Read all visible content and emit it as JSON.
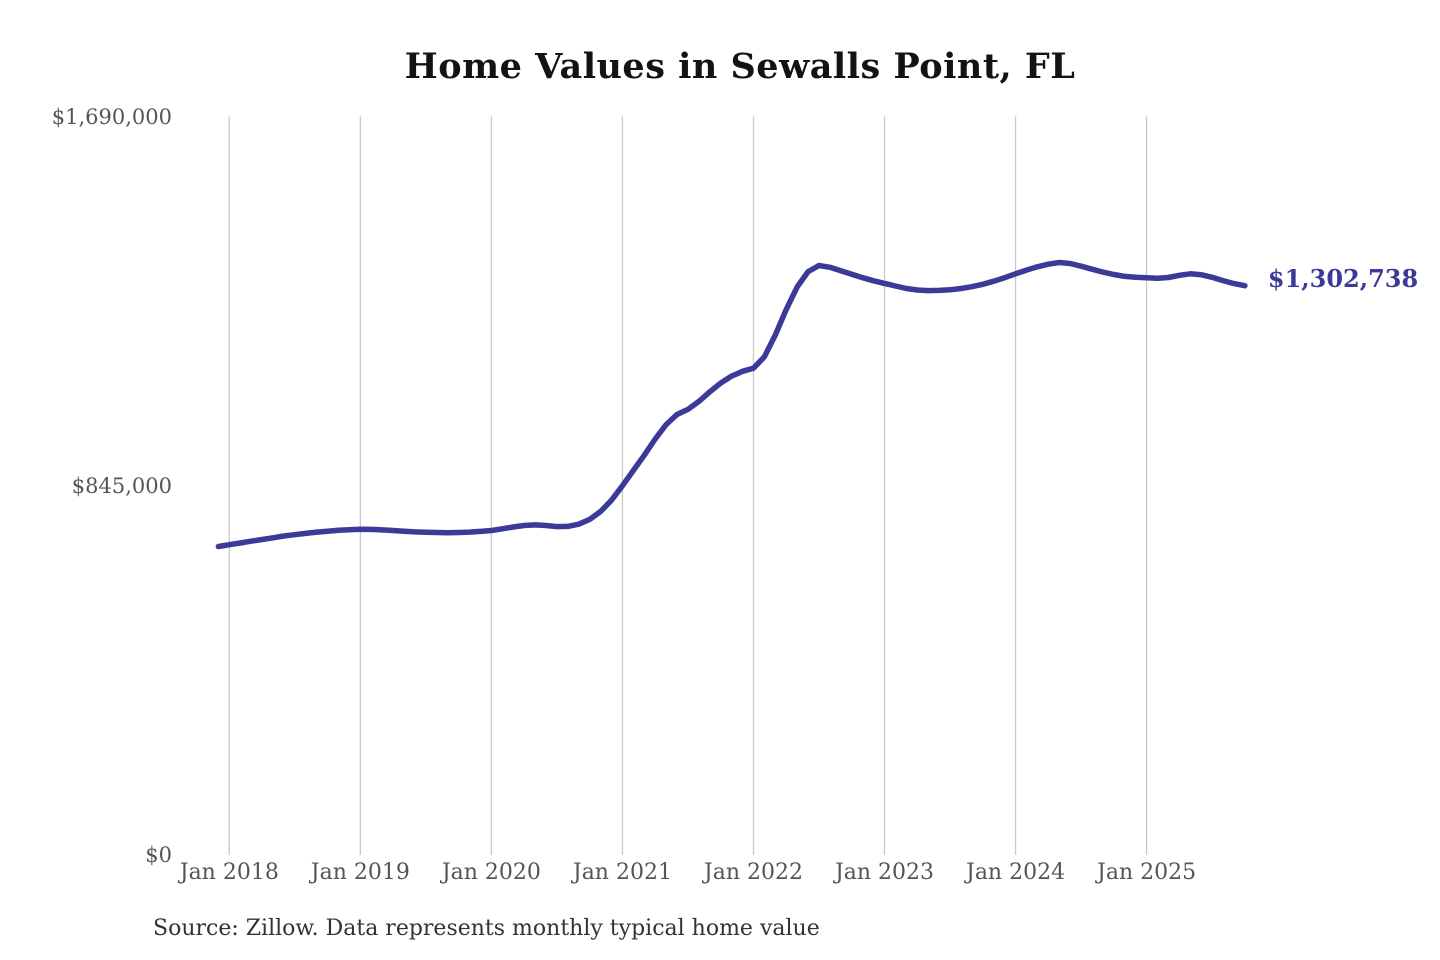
{
  "page": {
    "background": "#ffffff"
  },
  "chart": {
    "title": "Home Values in Sewalls Point, FL",
    "latest_value_label": "$1,302,738",
    "source": "Source: Zillow. Data represents monthly typical home value"
  },
  "colors": {
    "line": "#3b3a98",
    "value_label": "#3b3a98",
    "grid": "#c9c9c9",
    "axis_text": "#555555",
    "title_text": "#131313",
    "source_text": "#333333",
    "background": "#ffffff"
  },
  "chart_data": {
    "type": "line",
    "title": "Home Values in Sewalls Point, FL",
    "series_name": "Monthly typical home value (USD)",
    "source": "Source: Zillow. Data represents monthly typical home value",
    "legend": "none",
    "grid": "vertical-only",
    "ylim": [
      0,
      1690000
    ],
    "y_ticks": [
      {
        "label": "$0",
        "value": 0
      },
      {
        "label": "$845,000",
        "value": 845000
      },
      {
        "label": "$1,690,000",
        "value": 1690000
      }
    ],
    "x_ticks": [
      {
        "label": "Jan 2018",
        "month": "2018-01"
      },
      {
        "label": "Jan 2019",
        "month": "2019-01"
      },
      {
        "label": "Jan 2020",
        "month": "2020-01"
      },
      {
        "label": "Jan 2021",
        "month": "2021-01"
      },
      {
        "label": "Jan 2022",
        "month": "2022-01"
      },
      {
        "label": "Jan 2023",
        "month": "2023-01"
      },
      {
        "label": "Jan 2024",
        "month": "2024-01"
      },
      {
        "label": "Jan 2025",
        "month": "2025-01"
      }
    ],
    "end_annotation": "$1,302,738",
    "months": [
      "2017-12",
      "2018-01",
      "2018-02",
      "2018-03",
      "2018-04",
      "2018-05",
      "2018-06",
      "2018-07",
      "2018-08",
      "2018-09",
      "2018-10",
      "2018-11",
      "2018-12",
      "2019-01",
      "2019-02",
      "2019-03",
      "2019-04",
      "2019-05",
      "2019-06",
      "2019-07",
      "2019-08",
      "2019-09",
      "2019-10",
      "2019-11",
      "2019-12",
      "2020-01",
      "2020-02",
      "2020-03",
      "2020-04",
      "2020-05",
      "2020-06",
      "2020-07",
      "2020-08",
      "2020-09",
      "2020-10",
      "2020-11",
      "2020-12",
      "2021-01",
      "2021-02",
      "2021-03",
      "2021-04",
      "2021-05",
      "2021-06",
      "2021-07",
      "2021-08",
      "2021-09",
      "2021-10",
      "2021-11",
      "2021-12",
      "2022-01",
      "2022-02",
      "2022-03",
      "2022-04",
      "2022-05",
      "2022-06",
      "2022-07",
      "2022-08",
      "2022-09",
      "2022-10",
      "2022-11",
      "2022-12",
      "2023-01",
      "2023-02",
      "2023-03",
      "2023-04",
      "2023-05",
      "2023-06",
      "2023-07",
      "2023-08",
      "2023-09",
      "2023-10",
      "2023-11",
      "2023-12",
      "2024-01",
      "2024-02",
      "2024-03",
      "2024-04",
      "2024-05",
      "2024-06",
      "2024-07",
      "2024-08",
      "2024-09",
      "2024-10",
      "2024-11",
      "2024-12",
      "2025-01",
      "2025-02",
      "2025-03",
      "2025-04",
      "2025-05",
      "2025-06",
      "2025-07",
      "2025-08",
      "2025-09",
      "2025-10"
    ],
    "values": [
      706000,
      710000,
      714000,
      718000,
      722000,
      726000,
      730000,
      733000,
      736000,
      739000,
      741000,
      743000,
      744500,
      745500,
      745000,
      744000,
      742500,
      741000,
      739500,
      738500,
      738000,
      737500,
      738000,
      739000,
      740500,
      742500,
      746500,
      750500,
      754000,
      755500,
      754000,
      751500,
      752000,
      757000,
      768000,
      786000,
      812000,
      845000,
      880000,
      915000,
      952000,
      985000,
      1008000,
      1020000,
      1038000,
      1060000,
      1080000,
      1096000,
      1107000,
      1114000,
      1140000,
      1190000,
      1248000,
      1300000,
      1335000,
      1349000,
      1345000,
      1337000,
      1329000,
      1321000,
      1314000,
      1308000,
      1302000,
      1296500,
      1293000,
      1291500,
      1292000,
      1293500,
      1296500,
      1300500,
      1306000,
      1313000,
      1321000,
      1330000,
      1338500,
      1346000,
      1352000,
      1356000,
      1353500,
      1347500,
      1340500,
      1334000,
      1328500,
      1324000,
      1322000,
      1321000,
      1320000,
      1321500,
      1326500,
      1330000,
      1328000,
      1322000,
      1314500,
      1307500,
      1302738
    ]
  }
}
